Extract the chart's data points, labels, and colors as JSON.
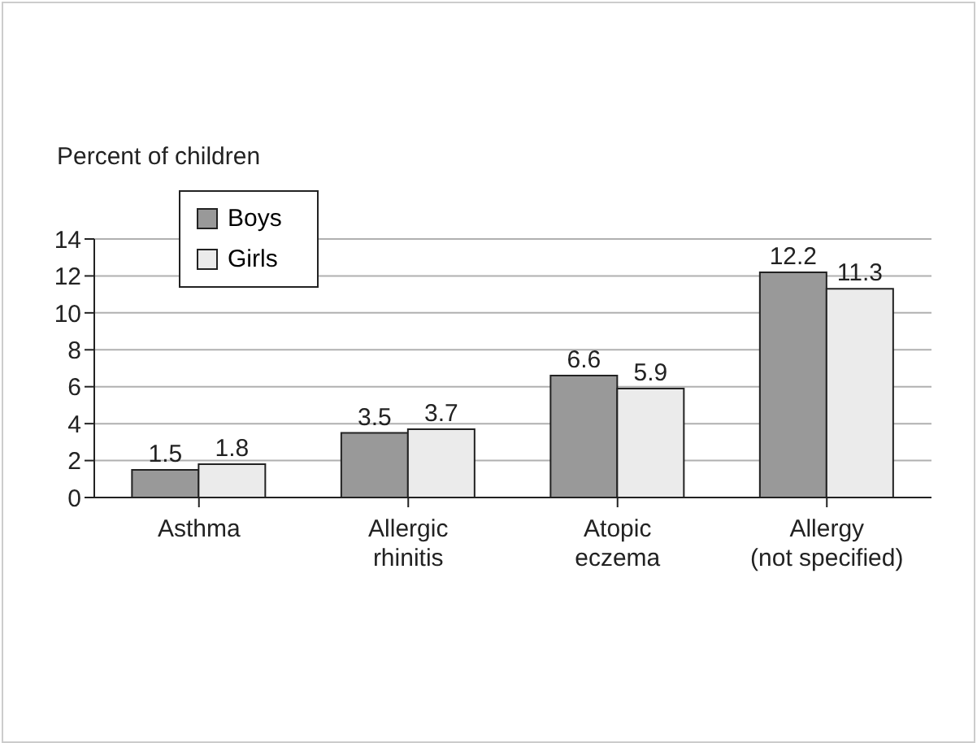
{
  "chart_data": {
    "type": "bar",
    "ylabel": "Percent of children",
    "categories": [
      "Asthma",
      "Allergic rhinitis",
      "Atopic eczema",
      "Allergy (not specified)"
    ],
    "series": [
      {
        "name": "Boys",
        "color": "#999999",
        "values": [
          1.5,
          3.5,
          6.6,
          12.2
        ]
      },
      {
        "name": "Girls",
        "color": "#ebebeb",
        "values": [
          1.8,
          3.7,
          5.9,
          11.3
        ]
      }
    ],
    "ylim": [
      0,
      14
    ],
    "yticks": [
      0,
      2,
      4,
      6,
      8,
      10,
      12,
      14
    ],
    "grid": "y",
    "legend": "top left",
    "data_labels": true
  }
}
